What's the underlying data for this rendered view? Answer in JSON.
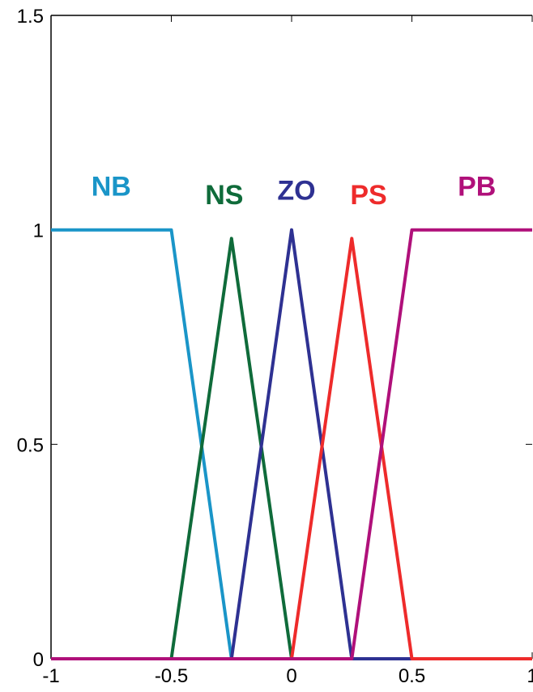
{
  "chart_data": {
    "type": "line",
    "title": "",
    "xlabel": "",
    "ylabel": "",
    "xlim": [
      -1,
      1
    ],
    "ylim": [
      0,
      1.5
    ],
    "grid": false,
    "legend": "none",
    "x_ticks": [
      "-1",
      "-0.5",
      "0",
      "0.5",
      "1"
    ],
    "y_ticks": [
      "0",
      "0.5",
      "1",
      "1.5"
    ],
    "series": [
      {
        "name": "NB",
        "color": "#1a95c8",
        "x": [
          -1,
          -0.5,
          -0.25,
          1
        ],
        "y": [
          1,
          1,
          0,
          0
        ]
      },
      {
        "name": "NS",
        "color": "#0f6b3a",
        "x": [
          -1,
          -0.5,
          -0.25,
          0,
          1
        ],
        "y": [
          0,
          0,
          0.98,
          0,
          0
        ]
      },
      {
        "name": "ZO",
        "color": "#2e3192",
        "x": [
          -1,
          -0.25,
          0,
          0.25,
          1
        ],
        "y": [
          0,
          0,
          1,
          0,
          0
        ]
      },
      {
        "name": "PS",
        "color": "#ee2b2b",
        "x": [
          -1,
          0,
          0.25,
          0.5,
          1
        ],
        "y": [
          0,
          0,
          0.98,
          0,
          0
        ]
      },
      {
        "name": "PB",
        "color": "#b0107a",
        "x": [
          -1,
          0.25,
          0.5,
          1
        ],
        "y": [
          0,
          0,
          1,
          1
        ]
      }
    ],
    "annotations": [
      {
        "text": "NB",
        "x": -0.75,
        "y": 1.08,
        "series": 0
      },
      {
        "text": "NS",
        "x": -0.28,
        "y": 1.06,
        "series": 1
      },
      {
        "text": "ZO",
        "x": 0.02,
        "y": 1.07,
        "series": 2
      },
      {
        "text": "PS",
        "x": 0.32,
        "y": 1.06,
        "series": 3
      },
      {
        "text": "PB",
        "x": 0.77,
        "y": 1.08,
        "series": 4
      }
    ]
  }
}
